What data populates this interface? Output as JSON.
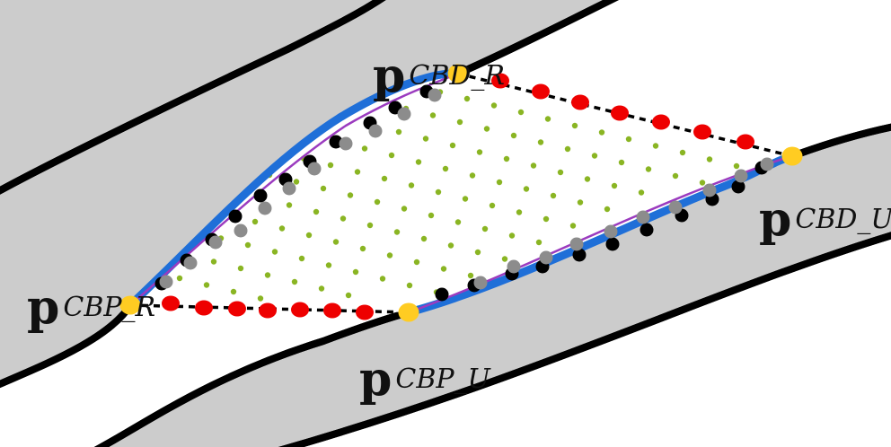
{
  "colors": {
    "background": "#ffffff",
    "road_fill": "#cccccc",
    "road_edge": "#000000",
    "boundary_blue": "#1f6fd8",
    "boundary_purple": "#9b3bbf",
    "bridge_dashed": "#000000",
    "dot_red": "#ee0000",
    "dot_black": "#000000",
    "dot_gray": "#8c8c8c",
    "dot_green": "#8ab523",
    "endpoint_yellow": "#ffcc22"
  },
  "labels": {
    "cbd_r": {
      "main": "p",
      "sub": "CBD_R"
    },
    "cbd_u": {
      "main": "p",
      "sub": "CBD_U"
    },
    "cbp_r": {
      "main": "p",
      "sub": "CBP_R"
    },
    "cbp_u": {
      "main": "p",
      "sub": "CBP_U"
    }
  },
  "legend_items": {
    "endpoints": "endpoint-yellow-dot",
    "bridging_points": "red-dot",
    "boundary_points_outer": "black-dot",
    "boundary_points_inner": "gray-dot",
    "interior_samples": "green-dot"
  }
}
